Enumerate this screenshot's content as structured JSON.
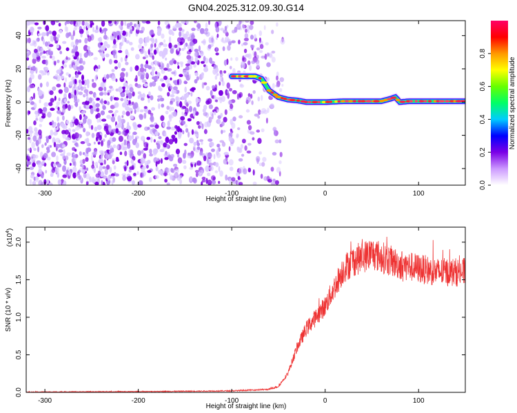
{
  "title": "GN04.2025.312.09.30.G14",
  "chart_data": [
    {
      "type": "heatmap",
      "xlabel": "Height of straight line (km)",
      "ylabel": "Frequency (Hz)",
      "xlim": [
        -320,
        150
      ],
      "ylim": [
        -50,
        49
      ],
      "xticks": [
        -300,
        -200,
        -100,
        0,
        100
      ],
      "yticks": [
        -40,
        -20,
        0,
        20,
        40
      ],
      "colorbar": {
        "label": "Normalized spectral amplitude",
        "range": [
          0,
          1
        ],
        "ticks": [
          "0.0",
          "0.2",
          "0.4",
          "0.6",
          "0.8"
        ],
        "colors": [
          "#ffffff",
          "#cc99ff",
          "#7b00e6",
          "#0000ff",
          "#00ccff",
          "#00ff66",
          "#66ff00",
          "#ffff00",
          "#ff9900",
          "#ff0000",
          "#ff0066"
        ]
      },
      "noise_region_x": [
        -320,
        -60
      ],
      "ridge": {
        "x": [
          -100,
          -75,
          -68,
          -60,
          -50,
          -40,
          -30,
          -20,
          0,
          20,
          40,
          60,
          70,
          75,
          80,
          90,
          110,
          150
        ],
        "y": [
          15.5,
          15.5,
          14,
          7,
          3,
          1.5,
          1,
          0,
          0,
          0.5,
          0.5,
          0.5,
          2,
          3,
          0,
          0.5,
          0.5,
          0.5
        ]
      }
    },
    {
      "type": "line",
      "xlabel": "Height of straight line (km)",
      "ylabel": "SNR (10 * v/v)",
      "y_multiplier": "(x10",
      "y_multiplier_exp": "4",
      "y_multiplier_close": ")",
      "xlim": [
        -320,
        150
      ],
      "ylim": [
        0,
        2.2
      ],
      "xticks": [
        -300,
        -200,
        -100,
        0,
        100
      ],
      "yticks": [
        "0.0",
        "0.5",
        "1.0",
        "1.5",
        "2.0"
      ],
      "color": "#ee3333",
      "envelope": {
        "x": [
          -320,
          -200,
          -100,
          -60,
          -50,
          -40,
          -30,
          -20,
          -10,
          0,
          10,
          20,
          30,
          40,
          50,
          60,
          70,
          80,
          100,
          120,
          150
        ],
        "y": [
          0.005,
          0.01,
          0.02,
          0.04,
          0.08,
          0.25,
          0.6,
          0.85,
          1.0,
          1.15,
          1.4,
          1.65,
          1.75,
          1.8,
          1.85,
          1.8,
          1.75,
          1.7,
          1.65,
          1.6,
          1.6
        ]
      }
    }
  ]
}
